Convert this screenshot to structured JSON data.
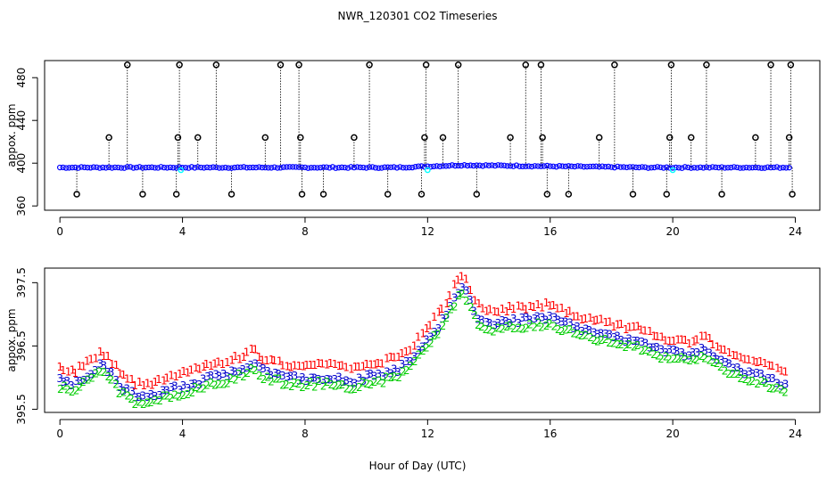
{
  "title": "NWR_120301  CO2 Timeseries",
  "xlabel": "Hour of Day (UTC)",
  "colors": {
    "axis": "#000000",
    "series_primary": "#0000ff",
    "series_cyan": "#00ffff",
    "outlier": "#000000",
    "level1": "#ff0000",
    "level2": "#00cc00",
    "level3": "#0000cc"
  },
  "chart_data": [
    {
      "type": "scatter",
      "title": "NWR_120301  CO2 Timeseries",
      "xlabel": "",
      "ylabel": "appox. ppm",
      "xlim": [
        -0.5,
        24.8
      ],
      "ylim": [
        356,
        496
      ],
      "xticks": [
        0,
        4,
        8,
        12,
        16,
        20,
        24
      ],
      "yticks": [
        360,
        400,
        440,
        480
      ],
      "baseline": {
        "from": 0,
        "to": 23.9,
        "value_start": 396.0,
        "value_peak": 398.2,
        "peak_hour": 13.1
      },
      "high_outliers": [
        {
          "x": 1.6,
          "y": 424
        },
        {
          "x": 2.2,
          "y": 492
        },
        {
          "x": 3.85,
          "y": 424
        },
        {
          "x": 3.9,
          "y": 492
        },
        {
          "x": 4.5,
          "y": 424
        },
        {
          "x": 5.1,
          "y": 492
        },
        {
          "x": 6.7,
          "y": 424
        },
        {
          "x": 7.2,
          "y": 492
        },
        {
          "x": 7.8,
          "y": 492
        },
        {
          "x": 7.85,
          "y": 424
        },
        {
          "x": 9.6,
          "y": 424
        },
        {
          "x": 10.1,
          "y": 492
        },
        {
          "x": 11.9,
          "y": 424
        },
        {
          "x": 11.95,
          "y": 492
        },
        {
          "x": 12.5,
          "y": 424
        },
        {
          "x": 13.0,
          "y": 492
        },
        {
          "x": 14.7,
          "y": 424
        },
        {
          "x": 15.2,
          "y": 492
        },
        {
          "x": 15.7,
          "y": 492
        },
        {
          "x": 15.75,
          "y": 424
        },
        {
          "x": 17.6,
          "y": 424
        },
        {
          "x": 18.1,
          "y": 492
        },
        {
          "x": 19.9,
          "y": 424
        },
        {
          "x": 19.95,
          "y": 492
        },
        {
          "x": 20.6,
          "y": 424
        },
        {
          "x": 21.1,
          "y": 492
        },
        {
          "x": 22.7,
          "y": 424
        },
        {
          "x": 23.2,
          "y": 492
        },
        {
          "x": 23.8,
          "y": 424
        },
        {
          "x": 23.85,
          "y": 492
        }
      ],
      "low_outliers": [
        {
          "x": 0.55,
          "y": 371
        },
        {
          "x": 2.7,
          "y": 371
        },
        {
          "x": 3.8,
          "y": 371
        },
        {
          "x": 5.6,
          "y": 371
        },
        {
          "x": 7.9,
          "y": 371
        },
        {
          "x": 8.6,
          "y": 371
        },
        {
          "x": 10.7,
          "y": 371
        },
        {
          "x": 11.8,
          "y": 371
        },
        {
          "x": 13.6,
          "y": 371
        },
        {
          "x": 15.9,
          "y": 371
        },
        {
          "x": 16.6,
          "y": 371
        },
        {
          "x": 18.7,
          "y": 371
        },
        {
          "x": 19.8,
          "y": 371
        },
        {
          "x": 21.6,
          "y": 371
        },
        {
          "x": 23.9,
          "y": 371
        }
      ],
      "cyan_points": [
        {
          "x": 3.95,
          "y": 393.5
        },
        {
          "x": 12.0,
          "y": 393.5
        },
        {
          "x": 20.0,
          "y": 393.5
        }
      ]
    },
    {
      "type": "scatter",
      "title": "",
      "xlabel": "Hour of Day (UTC)",
      "ylabel": "appox. ppm",
      "xlim": [
        -0.5,
        24.8
      ],
      "ylim": [
        395.45,
        397.73
      ],
      "xticks": [
        0,
        4,
        8,
        12,
        16,
        20,
        24
      ],
      "yticks": [
        395.5,
        396.5,
        397.5
      ],
      "ytick_labels": [
        "395.5",
        "396.5",
        "397.5"
      ],
      "series": [
        {
          "name": "1",
          "offset": 0.2
        },
        {
          "name": "3",
          "offset": 0.0
        },
        {
          "name": "2",
          "offset": -0.1
        }
      ],
      "trend": {
        "x": [
          0,
          0.5,
          1.0,
          1.3,
          1.6,
          2.0,
          2.5,
          3.0,
          3.5,
          4.0,
          4.5,
          5.0,
          5.5,
          6.0,
          6.3,
          6.6,
          7.0,
          7.5,
          8.0,
          8.5,
          9.0,
          9.5,
          10.0,
          10.5,
          11.0,
          11.5,
          12.0,
          12.5,
          12.8,
          13.1,
          13.3,
          13.6,
          14.0,
          15.0,
          16.0,
          17.0,
          18.0,
          18.5,
          19.0,
          19.5,
          20.0,
          20.5,
          21.0,
          21.5,
          22.0,
          22.5,
          23.0,
          23.5,
          23.7
        ],
        "y": [
          395.95,
          395.9,
          396.05,
          396.2,
          396.1,
          395.85,
          395.7,
          395.72,
          395.78,
          395.85,
          395.92,
          396.0,
          396.05,
          396.15,
          396.25,
          396.1,
          396.05,
          396.0,
          395.98,
          396.0,
          395.98,
          395.92,
          396.0,
          396.05,
          396.1,
          396.3,
          396.6,
          396.9,
          397.2,
          397.45,
          397.3,
          396.95,
          396.85,
          396.9,
          396.95,
          396.75,
          396.65,
          396.6,
          396.55,
          396.45,
          396.4,
          396.35,
          396.45,
          396.3,
          396.15,
          396.05,
          396.0,
          395.9,
          395.85
        ]
      }
    }
  ]
}
